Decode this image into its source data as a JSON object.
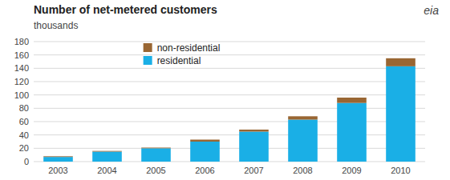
{
  "chart_data": {
    "type": "bar",
    "stacked": true,
    "title": "Number of net-metered  customers",
    "subtitle": "thousands",
    "annotations": [
      "eia"
    ],
    "categories": [
      "2003",
      "2004",
      "2005",
      "2006",
      "2007",
      "2008",
      "2009",
      "2010"
    ],
    "series": [
      {
        "name": "residential",
        "color": "#1aafe6",
        "values": [
          7,
          15,
          20,
          30,
          45,
          63,
          88,
          143
        ]
      },
      {
        "name": "non-residential",
        "color": "#996633",
        "values": [
          1,
          1,
          1,
          3,
          3,
          5,
          8,
          12
        ]
      }
    ],
    "ylim": [
      0,
      180
    ],
    "yticks": [
      0,
      20,
      40,
      60,
      80,
      100,
      120,
      140,
      160,
      180
    ],
    "grid": true,
    "legend": "upper left"
  }
}
